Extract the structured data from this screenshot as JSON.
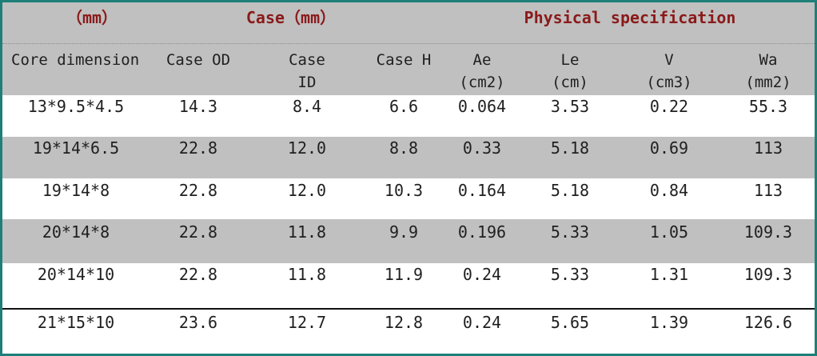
{
  "group_headers": {
    "mm": "（mm）",
    "case": "Case（mm）",
    "physical": "Physical specification"
  },
  "columns": {
    "core_dimension": "Core dimension",
    "case_od": "Case OD",
    "case_id_line1": "Case",
    "case_id_line2": "ID",
    "case_h": "Case H",
    "ae_line1": "Ae",
    "ae_line2": "(cm2)",
    "le_line1": "Le",
    "le_line2": "(cm)",
    "v_line1": "V",
    "v_line2": "(cm3)",
    "wa_line1": "Wa",
    "wa_line2": "(mm2)"
  },
  "rows": [
    {
      "core": "13*9.5*4.5",
      "od": "14.3",
      "id": "8.4",
      "h": "6.6",
      "ae": "0.064",
      "le": "3.53",
      "v": "0.22",
      "wa": "55.3"
    },
    {
      "core": "19*14*6.5",
      "od": "22.8",
      "id": "12.0",
      "h": "8.8",
      "ae": "0.33",
      "le": "5.18",
      "v": "0.69",
      "wa": "113"
    },
    {
      "core": "19*14*8",
      "od": "22.8",
      "id": "12.0",
      "h": "10.3",
      "ae": "0.164",
      "le": "5.18",
      "v": "0.84",
      "wa": "113"
    },
    {
      "core": "20*14*8",
      "od": "22.8",
      "id": "11.8",
      "h": "9.9",
      "ae": "0.196",
      "le": "5.33",
      "v": "1.05",
      "wa": "109.3"
    },
    {
      "core": "20*14*10",
      "od": "22.8",
      "id": "11.8",
      "h": "11.9",
      "ae": "0.24",
      "le": "5.33",
      "v": "1.31",
      "wa": "109.3"
    },
    {
      "core": "21*15*10",
      "od": "23.6",
      "id": "12.7",
      "h": "12.8",
      "ae": "0.24",
      "le": "5.65",
      "v": "1.39",
      "wa": "126.6"
    }
  ],
  "colors": {
    "border": "#1e7f79",
    "header_text": "#8b1a1a",
    "band_gray": "#c0c0c0",
    "text": "#1f1f1f"
  }
}
